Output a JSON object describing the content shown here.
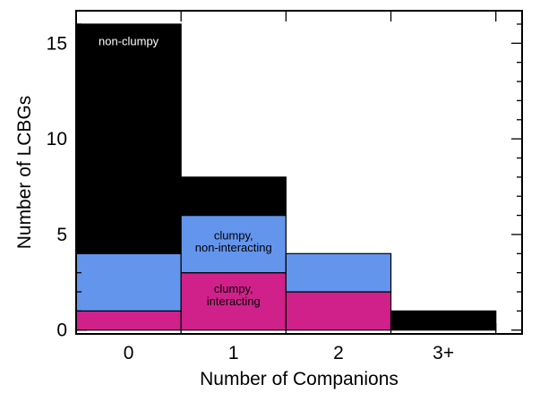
{
  "chart_data": {
    "type": "bar",
    "stacked": true,
    "categories": [
      "0",
      "1",
      "2",
      "3+"
    ],
    "series": [
      {
        "name": "clumpy, interacting",
        "values": [
          1,
          3,
          2,
          0
        ],
        "color": "#d0218b"
      },
      {
        "name": "clumpy, non-interacting",
        "values": [
          3,
          3,
          2,
          0
        ],
        "color": "#6495ed"
      },
      {
        "name": "non-clumpy",
        "values": [
          12,
          2,
          0,
          1
        ],
        "color": "#000000"
      }
    ],
    "annotations": [
      {
        "text": "non-clumpy",
        "category": "0",
        "y": 14.9,
        "color": "#ffffff"
      },
      {
        "text": "clumpy,",
        "category": "1",
        "y": 4.75,
        "color": "#000000"
      },
      {
        "text": "non-interacting",
        "category": "1",
        "y": 4.1,
        "color": "#000000"
      },
      {
        "text": "clumpy,",
        "category": "1",
        "y": 1.95,
        "color": "#000000"
      },
      {
        "text": "interacting",
        "category": "1",
        "y": 1.3,
        "color": "#000000"
      }
    ],
    "xlabel": "Number of Companions",
    "ylabel": "Number of LCBGs",
    "ylim": [
      -0.2,
      16.7
    ],
    "yticks": [
      0,
      5,
      10,
      15
    ],
    "yminor_step": 1,
    "xlim": [
      -0.5,
      3.75
    ],
    "grid": false
  }
}
